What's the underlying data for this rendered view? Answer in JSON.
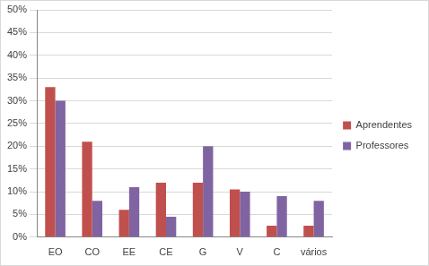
{
  "chart_data": {
    "type": "bar",
    "categories": [
      "EO",
      "CO",
      "EE",
      "CE",
      "G",
      "V",
      "C",
      "vários"
    ],
    "series": [
      {
        "name": "Aprendentes",
        "color": "#c0504d",
        "values": [
          33,
          21,
          6,
          12,
          12,
          10.5,
          2.5,
          2.5
        ]
      },
      {
        "name": "Professores",
        "color": "#8064a2",
        "values": [
          30,
          8,
          11,
          4.5,
          20,
          10,
          9,
          8
        ]
      }
    ],
    "ylim": [
      0,
      50
    ],
    "yticks": [
      {
        "value": 0,
        "label": "0%"
      },
      {
        "value": 5,
        "label": "5%"
      },
      {
        "value": 10,
        "label": "10%"
      },
      {
        "value": 15,
        "label": "15%"
      },
      {
        "value": 20,
        "label": "20%"
      },
      {
        "value": 25,
        "label": "25%"
      },
      {
        "value": 30,
        "label": "30%"
      },
      {
        "value": 35,
        "label": "35%"
      },
      {
        "value": 40,
        "label": "40%"
      },
      {
        "value": 45,
        "label": "45%"
      },
      {
        "value": 50,
        "label": "50%"
      }
    ],
    "grid": true,
    "legend": "right"
  }
}
